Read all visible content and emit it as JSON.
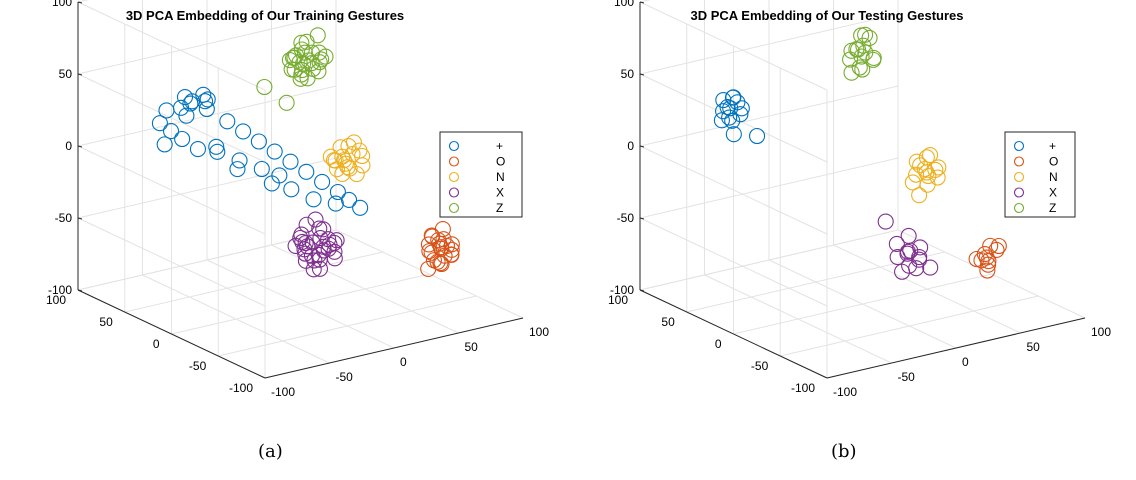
{
  "chart_data": [
    {
      "type": "scatter",
      "title": "3D PCA Embedding of Our Training Gestures",
      "caption": "(a)",
      "xlim": [
        -100,
        100
      ],
      "ylim": [
        -100,
        100
      ],
      "zlim": [
        -100,
        100
      ],
      "x_ticks": [
        "-100",
        "-50",
        "0",
        "50",
        "100"
      ],
      "y_ticks": [
        "100",
        "50",
        "0",
        "-50",
        "-100"
      ],
      "z_ticks": [
        "100",
        "50",
        "0",
        "-50",
        "-100"
      ],
      "grid": true,
      "legend_position": "right",
      "series": [
        {
          "name": "+",
          "color": "#0072BD",
          "points": [
            [
              -60,
              45,
              35
            ],
            [
              -55,
              40,
              40
            ],
            [
              -50,
              35,
              45
            ],
            [
              -45,
              40,
              38
            ],
            [
              -40,
              45,
              30
            ],
            [
              -35,
              30,
              25
            ],
            [
              -30,
              20,
              20
            ],
            [
              -25,
              10,
              15
            ],
            [
              -20,
              0,
              10
            ],
            [
              -15,
              -10,
              5
            ],
            [
              -10,
              -20,
              0
            ],
            [
              -5,
              -30,
              -5
            ],
            [
              0,
              -40,
              -10
            ],
            [
              5,
              -45,
              -15
            ],
            [
              10,
              -50,
              -20
            ],
            [
              -70,
              30,
              20
            ],
            [
              -65,
              20,
              15
            ],
            [
              -75,
              35,
              25
            ],
            [
              -80,
              40,
              30
            ],
            [
              -50,
              20,
              10
            ],
            [
              -40,
              10,
              5
            ],
            [
              -30,
              0,
              0
            ],
            [
              -20,
              -5,
              -5
            ],
            [
              -58,
              42,
              30
            ],
            [
              -62,
              38,
              45
            ],
            [
              -52,
              46,
              36
            ],
            [
              -48,
              33,
              42
            ],
            [
              -45,
              28,
              10
            ],
            [
              -38,
              15,
              -3
            ],
            [
              -28,
              -8,
              -8
            ],
            [
              -18,
              -15,
              -12
            ],
            [
              -8,
              -25,
              -18
            ],
            [
              2,
              -35,
              -20
            ],
            [
              -85,
              28,
              20
            ],
            [
              -72,
              44,
              36
            ]
          ]
        },
        {
          "name": "O",
          "color": "#D95319",
          "points": [
            [
              75,
              -45,
              -60
            ],
            [
              80,
              -40,
              -65
            ],
            [
              70,
              -50,
              -70
            ],
            [
              85,
              -35,
              -55
            ],
            [
              78,
              -42,
              -75
            ],
            [
              72,
              -38,
              -62
            ],
            [
              82,
              -48,
              -68
            ],
            [
              76,
              -36,
              -58
            ],
            [
              68,
              -44,
              -64
            ],
            [
              88,
              -40,
              -72
            ],
            [
              74,
              -52,
              -66
            ],
            [
              80,
              -30,
              -60
            ],
            [
              70,
              -40,
              -78
            ],
            [
              84,
              -46,
              -62
            ],
            [
              77,
              -34,
              -70
            ],
            [
              72,
              -48,
              -56
            ],
            [
              86,
              -38,
              -66
            ],
            [
              79,
              -44,
              -58
            ],
            [
              73,
              -42,
              -72
            ],
            [
              81,
              -50,
              -64
            ],
            [
              76,
              -46,
              -74
            ],
            [
              83,
              -36,
              -68
            ]
          ]
        },
        {
          "name": "N",
          "color": "#EDB120",
          "points": [
            [
              70,
              50,
              -30
            ],
            [
              75,
              55,
              -35
            ],
            [
              65,
              45,
              -25
            ],
            [
              80,
              60,
              -40
            ],
            [
              72,
              48,
              -20
            ],
            [
              68,
              58,
              -32
            ],
            [
              78,
              52,
              -28
            ],
            [
              74,
              42,
              -38
            ],
            [
              82,
              56,
              -22
            ],
            [
              66,
              52,
              -36
            ],
            [
              76,
              62,
              -26
            ],
            [
              70,
              44,
              -34
            ],
            [
              84,
              50,
              -30
            ],
            [
              62,
              48,
              -28
            ],
            [
              73,
              56,
              -42
            ],
            [
              79,
              46,
              -24
            ],
            [
              67,
              60,
              -30
            ],
            [
              77,
              40,
              -32
            ]
          ]
        },
        {
          "name": "X",
          "color": "#7E2F8E",
          "points": [
            [
              -45,
              -75,
              -25
            ],
            [
              -40,
              -80,
              -30
            ],
            [
              -50,
              -70,
              -20
            ],
            [
              -35,
              -85,
              -35
            ],
            [
              -42,
              -78,
              -15
            ],
            [
              -48,
              -72,
              -38
            ],
            [
              -38,
              -82,
              -22
            ],
            [
              -44,
              -68,
              -30
            ],
            [
              -52,
              -76,
              -28
            ],
            [
              -36,
              -74,
              -18
            ],
            [
              -46,
              -84,
              -34
            ],
            [
              -40,
              -70,
              -40
            ],
            [
              -54,
              -80,
              -22
            ],
            [
              -34,
              -78,
              -28
            ],
            [
              -42,
              -88,
              -26
            ],
            [
              -48,
              -66,
              -24
            ],
            [
              -38,
              -72,
              -36
            ],
            [
              -44,
              -82,
              -20
            ],
            [
              -50,
              -74,
              -32
            ],
            [
              -36,
              -86,
              -30
            ],
            [
              -46,
              -70,
              -14
            ],
            [
              -40,
              -76,
              -44
            ],
            [
              -30,
              -80,
              -25
            ],
            [
              -56,
              -72,
              -26
            ],
            [
              -42,
              -74,
              -10
            ],
            [
              -47,
              -79,
              -42
            ],
            [
              -33,
              -70,
              -32
            ],
            [
              -52,
              -84,
              -30
            ],
            [
              -39,
              -90,
              -22
            ],
            [
              -45,
              -64,
              -28
            ]
          ]
        },
        {
          "name": "Z",
          "color": "#77AC30",
          "points": [
            [
              60,
              80,
              30
            ],
            [
              65,
              85,
              35
            ],
            [
              55,
              75,
              25
            ],
            [
              70,
              90,
              40
            ],
            [
              62,
              78,
              20
            ],
            [
              58,
              88,
              32
            ],
            [
              68,
              82,
              28
            ],
            [
              64,
              76,
              38
            ],
            [
              72,
              86,
              22
            ],
            [
              56,
              82,
              36
            ],
            [
              66,
              92,
              26
            ],
            [
              60,
              74,
              34
            ],
            [
              74,
              80,
              30
            ],
            [
              52,
              78,
              28
            ],
            [
              63,
              86,
              42
            ],
            [
              69,
              76,
              24
            ],
            [
              57,
              90,
              30
            ],
            [
              67,
              72,
              32
            ],
            [
              61,
              84,
              18
            ],
            [
              71,
              78,
              36
            ],
            [
              59,
              80,
              40
            ],
            [
              65,
              88,
              22
            ],
            [
              54,
              84,
              26
            ],
            [
              73,
              74,
              34
            ],
            [
              62,
              92,
              30
            ],
            [
              40,
              70,
              10
            ],
            [
              30,
              80,
              20
            ],
            [
              75,
              85,
              45
            ]
          ]
        }
      ]
    },
    {
      "type": "scatter",
      "title": "3D PCA Embedding of Our Testing Gestures",
      "caption": "(b)",
      "xlim": [
        -100,
        100
      ],
      "ylim": [
        -100,
        100
      ],
      "zlim": [
        -100,
        100
      ],
      "x_ticks": [
        "-100",
        "-50",
        "0",
        "50",
        "100"
      ],
      "y_ticks": [
        "100",
        "50",
        "0",
        "-50",
        "-100"
      ],
      "z_ticks": [
        "100",
        "50",
        "0",
        "-50",
        "-100"
      ],
      "grid": true,
      "legend_position": "right",
      "series": [
        {
          "name": "+",
          "color": "#0072BD",
          "points": [
            [
              -75,
              38,
              40
            ],
            [
              -70,
              42,
              45
            ],
            [
              -78,
              35,
              35
            ],
            [
              -72,
              45,
              38
            ],
            [
              -68,
              40,
              42
            ],
            [
              -80,
              40,
              32
            ],
            [
              -74,
              36,
              48
            ],
            [
              -70,
              34,
              36
            ],
            [
              -76,
              44,
              44
            ],
            [
              -66,
              38,
              38
            ],
            [
              -82,
              36,
              40
            ],
            [
              -72,
              40,
              30
            ],
            [
              -60,
              30,
              20
            ],
            [
              -78,
              30,
              25
            ]
          ]
        },
        {
          "name": "O",
          "color": "#D95319",
          "points": [
            [
              60,
              -50,
              -65
            ],
            [
              65,
              -45,
              -70
            ],
            [
              55,
              -55,
              -60
            ],
            [
              70,
              -40,
              -62
            ],
            [
              62,
              -48,
              -75
            ],
            [
              58,
              -42,
              -68
            ],
            [
              68,
              -52,
              -58
            ],
            [
              64,
              -46,
              -72
            ],
            [
              56,
              -50,
              -66
            ],
            [
              72,
              -44,
              -64
            ]
          ]
        },
        {
          "name": "N",
          "color": "#EDB120",
          "points": [
            [
              75,
              35,
              -35
            ],
            [
              80,
              40,
              -40
            ],
            [
              70,
              30,
              -30
            ],
            [
              85,
              45,
              -28
            ],
            [
              78,
              38,
              -45
            ],
            [
              72,
              42,
              -38
            ],
            [
              82,
              32,
              -32
            ],
            [
              76,
              36,
              -25
            ],
            [
              68,
              40,
              -42
            ],
            [
              84,
              38,
              -36
            ],
            [
              74,
              44,
              -30
            ],
            [
              80,
              30,
              -38
            ],
            [
              70,
              36,
              -50
            ],
            [
              78,
              46,
              -34
            ]
          ]
        },
        {
          "name": "X",
          "color": "#7E2F8E",
          "points": [
            [
              -30,
              -90,
              -30
            ],
            [
              -25,
              -95,
              -35
            ],
            [
              -35,
              -85,
              -25
            ],
            [
              -20,
              -100,
              -40
            ],
            [
              -28,
              -88,
              -20
            ],
            [
              -32,
              -94,
              -38
            ],
            [
              -22,
              -92,
              -28
            ],
            [
              -38,
              -90,
              -32
            ],
            [
              -26,
              -84,
              -34
            ],
            [
              -34,
              -98,
              -26
            ],
            [
              -40,
              -80,
              -10
            ],
            [
              -20,
              -85,
              -45
            ],
            [
              -30,
              -102,
              -30
            ],
            [
              -36,
              -92,
              -42
            ]
          ]
        },
        {
          "name": "Z",
          "color": "#77AC30",
          "points": [
            [
              50,
              70,
              40
            ],
            [
              55,
              75,
              45
            ],
            [
              45,
              65,
              35
            ],
            [
              60,
              80,
              50
            ],
            [
              52,
              72,
              30
            ],
            [
              48,
              78,
              42
            ],
            [
              58,
              68,
              38
            ],
            [
              54,
              76,
              52
            ],
            [
              46,
              70,
              46
            ],
            [
              62,
              74,
              34
            ],
            [
              50,
              66,
              44
            ],
            [
              56,
              82,
              40
            ],
            [
              44,
              74,
              38
            ],
            [
              35,
              60,
              35
            ],
            [
              62,
              78,
              48
            ]
          ]
        }
      ]
    }
  ]
}
